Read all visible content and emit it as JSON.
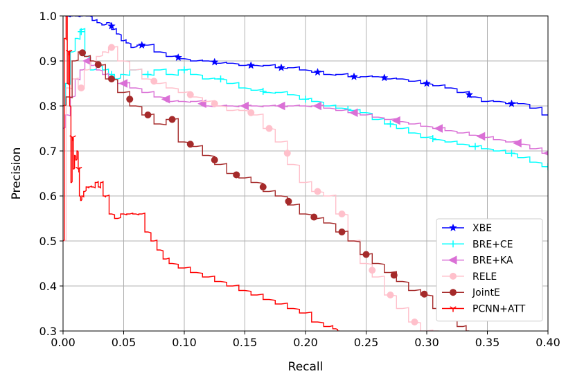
{
  "chart_data": {
    "type": "line",
    "xlabel": "Recall",
    "ylabel": "Precision",
    "xlim": [
      0.0,
      0.4
    ],
    "ylim": [
      0.3,
      1.0
    ],
    "xticks": [
      "0.00",
      "0.05",
      "0.10",
      "0.15",
      "0.20",
      "0.25",
      "0.30",
      "0.35",
      "0.40"
    ],
    "yticks": [
      "0.3",
      "0.4",
      "0.5",
      "0.6",
      "0.7",
      "0.8",
      "0.9",
      "1.0"
    ],
    "grid": true,
    "legend_position": "bottom-right",
    "series": [
      {
        "name": "XBE",
        "color": "#0000ff",
        "marker": "star",
        "x": [
          0.0,
          0.004,
          0.008,
          0.012,
          0.016,
          0.022,
          0.026,
          0.03,
          0.034,
          0.038,
          0.042,
          0.046,
          0.05,
          0.054,
          0.058,
          0.064,
          0.07,
          0.08,
          0.09,
          0.1,
          0.11,
          0.12,
          0.13,
          0.14,
          0.15,
          0.16,
          0.17,
          0.18,
          0.19,
          0.2,
          0.21,
          0.22,
          0.23,
          0.24,
          0.25,
          0.26,
          0.27,
          0.28,
          0.29,
          0.3,
          0.31,
          0.32,
          0.33,
          0.34,
          0.35,
          0.36,
          0.37,
          0.38,
          0.39,
          0.4
        ],
        "y": [
          1.0,
          1.0,
          1.0,
          1.0,
          1.0,
          1.0,
          0.99,
          0.985,
          0.98,
          0.985,
          0.97,
          0.96,
          0.945,
          0.94,
          0.93,
          0.935,
          0.935,
          0.92,
          0.91,
          0.905,
          0.9,
          0.9,
          0.895,
          0.895,
          0.89,
          0.89,
          0.89,
          0.885,
          0.885,
          0.88,
          0.875,
          0.87,
          0.87,
          0.865,
          0.865,
          0.865,
          0.86,
          0.86,
          0.855,
          0.85,
          0.845,
          0.84,
          0.83,
          0.82,
          0.81,
          0.81,
          0.805,
          0.805,
          0.795,
          0.78
        ],
        "marker_x": [
          0.04,
          0.065,
          0.095,
          0.125,
          0.155,
          0.18,
          0.21,
          0.24,
          0.265,
          0.3,
          0.335,
          0.37
        ]
      },
      {
        "name": "BRE+CE",
        "color": "#00ffff",
        "marker": "plus",
        "x": [
          0.0,
          0.004,
          0.008,
          0.012,
          0.016,
          0.02,
          0.025,
          0.03,
          0.035,
          0.04,
          0.045,
          0.05,
          0.06,
          0.07,
          0.08,
          0.09,
          0.1,
          0.11,
          0.12,
          0.13,
          0.14,
          0.15,
          0.16,
          0.17,
          0.18,
          0.19,
          0.2,
          0.21,
          0.22,
          0.23,
          0.24,
          0.25,
          0.26,
          0.27,
          0.28,
          0.29,
          0.3,
          0.31,
          0.32,
          0.33,
          0.34,
          0.35,
          0.36,
          0.37,
          0.38,
          0.39,
          0.4
        ],
        "y": [
          0.8,
          0.85,
          0.92,
          0.95,
          0.97,
          0.91,
          0.88,
          0.89,
          0.88,
          0.87,
          0.86,
          0.87,
          0.88,
          0.87,
          0.88,
          0.87,
          0.88,
          0.87,
          0.86,
          0.86,
          0.85,
          0.84,
          0.835,
          0.83,
          0.83,
          0.825,
          0.815,
          0.81,
          0.8,
          0.795,
          0.79,
          0.785,
          0.77,
          0.76,
          0.75,
          0.74,
          0.73,
          0.725,
          0.72,
          0.715,
          0.71,
          0.705,
          0.7,
          0.695,
          0.685,
          0.675,
          0.665
        ],
        "marker_x": [
          0.015,
          0.04,
          0.07,
          0.1,
          0.13,
          0.165,
          0.2,
          0.235,
          0.27,
          0.305,
          0.34,
          0.37,
          0.4
        ]
      },
      {
        "name": "BRE+KA",
        "color": "#da70d6",
        "marker": "triangle-left",
        "x": [
          0.0,
          0.004,
          0.008,
          0.012,
          0.016,
          0.02,
          0.025,
          0.03,
          0.035,
          0.04,
          0.05,
          0.06,
          0.07,
          0.08,
          0.09,
          0.1,
          0.11,
          0.12,
          0.13,
          0.14,
          0.15,
          0.16,
          0.17,
          0.18,
          0.19,
          0.2,
          0.21,
          0.22,
          0.23,
          0.24,
          0.25,
          0.26,
          0.27,
          0.28,
          0.29,
          0.3,
          0.31,
          0.32,
          0.33,
          0.34,
          0.35,
          0.36,
          0.37,
          0.38,
          0.39,
          0.4
        ],
        "y": [
          0.75,
          0.78,
          0.82,
          0.86,
          0.88,
          0.9,
          0.89,
          0.88,
          0.87,
          0.86,
          0.85,
          0.84,
          0.83,
          0.82,
          0.81,
          0.81,
          0.81,
          0.8,
          0.8,
          0.8,
          0.8,
          0.8,
          0.8,
          0.8,
          0.8,
          0.8,
          0.8,
          0.795,
          0.79,
          0.785,
          0.78,
          0.775,
          0.77,
          0.765,
          0.76,
          0.755,
          0.75,
          0.745,
          0.74,
          0.735,
          0.73,
          0.725,
          0.72,
          0.715,
          0.705,
          0.695
        ],
        "marker_x": [
          0.02,
          0.05,
          0.085,
          0.115,
          0.15,
          0.18,
          0.21,
          0.24,
          0.275,
          0.31,
          0.345,
          0.375,
          0.4
        ]
      },
      {
        "name": "RELE",
        "color": "#ffc0cb",
        "marker": "circle",
        "x": [
          0.0,
          0.005,
          0.01,
          0.015,
          0.02,
          0.025,
          0.03,
          0.035,
          0.04,
          0.05,
          0.06,
          0.07,
          0.08,
          0.09,
          0.1,
          0.11,
          0.12,
          0.13,
          0.14,
          0.15,
          0.16,
          0.17,
          0.18,
          0.19,
          0.2,
          0.21,
          0.22,
          0.23,
          0.24,
          0.25,
          0.26,
          0.27,
          0.28,
          0.29,
          0.3,
          0.31
        ],
        "y": [
          0.5,
          0.84,
          0.86,
          0.84,
          0.88,
          0.9,
          0.91,
          0.92,
          0.93,
          0.9,
          0.88,
          0.86,
          0.85,
          0.84,
          0.83,
          0.82,
          0.81,
          0.8,
          0.79,
          0.79,
          0.78,
          0.75,
          0.72,
          0.67,
          0.63,
          0.61,
          0.6,
          0.56,
          0.5,
          0.45,
          0.42,
          0.38,
          0.35,
          0.32,
          0.3,
          0.3
        ],
        "marker_x": [
          0.015,
          0.04,
          0.075,
          0.105,
          0.125,
          0.155,
          0.17,
          0.185,
          0.21,
          0.23,
          0.255,
          0.27,
          0.29
        ]
      },
      {
        "name": "JointE",
        "color": "#a52a2a",
        "marker": "circle",
        "x": [
          0.0,
          0.005,
          0.01,
          0.015,
          0.02,
          0.025,
          0.03,
          0.04,
          0.05,
          0.06,
          0.07,
          0.08,
          0.09,
          0.1,
          0.11,
          0.12,
          0.13,
          0.14,
          0.15,
          0.16,
          0.17,
          0.18,
          0.19,
          0.2,
          0.21,
          0.22,
          0.23,
          0.24,
          0.25,
          0.26,
          0.27,
          0.28,
          0.29,
          0.3,
          0.31,
          0.32,
          0.33,
          0.335
        ],
        "y": [
          0.8,
          0.82,
          0.9,
          0.92,
          0.91,
          0.9,
          0.89,
          0.86,
          0.83,
          0.8,
          0.78,
          0.76,
          0.77,
          0.72,
          0.71,
          0.69,
          0.67,
          0.65,
          0.64,
          0.63,
          0.61,
          0.6,
          0.58,
          0.56,
          0.55,
          0.54,
          0.52,
          0.5,
          0.47,
          0.45,
          0.43,
          0.41,
          0.39,
          0.38,
          0.35,
          0.33,
          0.31,
          0.3
        ],
        "marker_x": [
          0.016,
          0.029,
          0.04,
          0.055,
          0.07,
          0.09,
          0.105,
          0.125,
          0.143,
          0.165,
          0.186,
          0.207,
          0.23,
          0.25,
          0.273,
          0.298
        ]
      },
      {
        "name": "PCNN+ATT",
        "color": "#ff0000",
        "marker": "tri-down",
        "x": [
          0.0,
          0.002,
          0.003,
          0.004,
          0.005,
          0.006,
          0.007,
          0.008,
          0.009,
          0.01,
          0.011,
          0.012,
          0.013,
          0.014,
          0.015,
          0.016,
          0.018,
          0.02,
          0.022,
          0.025,
          0.028,
          0.03,
          0.032,
          0.034,
          0.036,
          0.04,
          0.045,
          0.05,
          0.055,
          0.06,
          0.065,
          0.07,
          0.075,
          0.08,
          0.085,
          0.09,
          0.1,
          0.11,
          0.12,
          0.13,
          0.14,
          0.15,
          0.16,
          0.17,
          0.18,
          0.19,
          0.2,
          0.21,
          0.22,
          0.225,
          0.228
        ],
        "y": [
          0.5,
          0.95,
          1.0,
          0.85,
          0.92,
          0.8,
          0.63,
          0.73,
          0.66,
          0.69,
          0.68,
          0.7,
          0.66,
          0.6,
          0.59,
          0.6,
          0.61,
          0.62,
          0.62,
          0.62,
          0.63,
          0.62,
          0.63,
          0.6,
          0.6,
          0.56,
          0.55,
          0.56,
          0.56,
          0.56,
          0.56,
          0.52,
          0.5,
          0.48,
          0.46,
          0.45,
          0.44,
          0.43,
          0.42,
          0.41,
          0.4,
          0.39,
          0.38,
          0.37,
          0.36,
          0.35,
          0.34,
          0.32,
          0.31,
          0.305,
          0.3
        ],
        "marker_x": [
          0.005,
          0.008,
          0.013
        ]
      }
    ]
  }
}
